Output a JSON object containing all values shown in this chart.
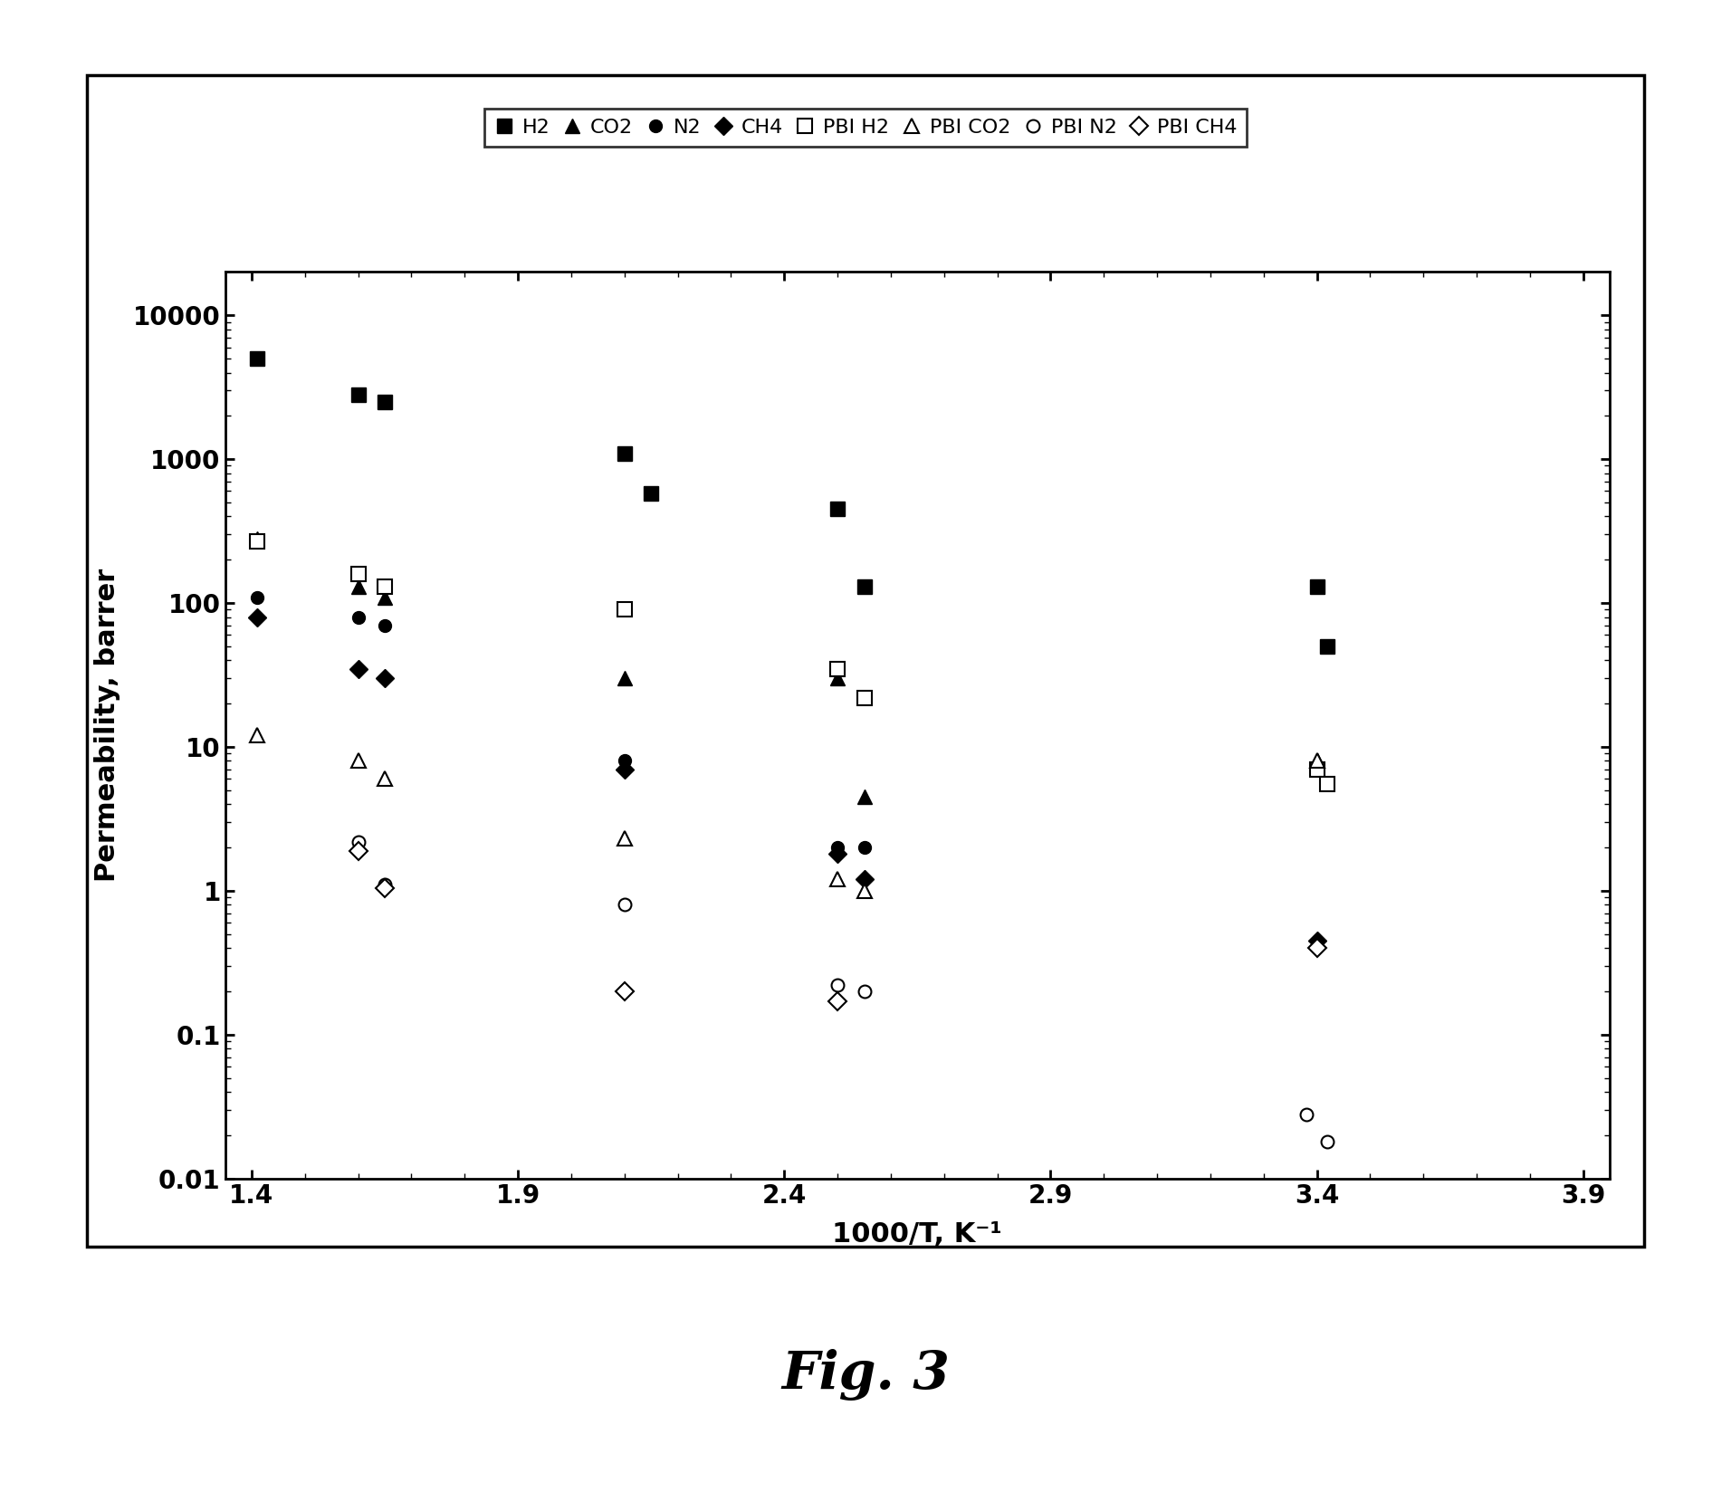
{
  "series": {
    "H2": {
      "x": [
        1.41,
        1.6,
        1.65,
        2.1,
        2.15,
        2.5,
        2.55,
        3.4,
        3.42
      ],
      "y": [
        5000,
        2800,
        2500,
        1100,
        580,
        450,
        130,
        130,
        50
      ],
      "marker": "s",
      "filled": true,
      "markersize": 11,
      "label": "H2"
    },
    "CO2": {
      "x": [
        1.41,
        1.6,
        1.65,
        2.1,
        2.5,
        2.55,
        3.4
      ],
      "y": [
        280,
        130,
        110,
        30,
        30,
        4.5,
        8
      ],
      "marker": "^",
      "filled": true,
      "markersize": 12,
      "label": "CO2"
    },
    "N2": {
      "x": [
        1.41,
        1.6,
        1.65,
        2.1,
        2.5,
        2.55
      ],
      "y": [
        110,
        80,
        70,
        8,
        2.0,
        2.0
      ],
      "marker": "o",
      "filled": true,
      "markersize": 10,
      "label": "N2"
    },
    "CH4": {
      "x": [
        1.41,
        1.6,
        1.65,
        2.1,
        2.5,
        2.55,
        3.4
      ],
      "y": [
        80,
        35,
        30,
        7,
        1.8,
        1.2,
        0.45
      ],
      "marker": "D",
      "filled": true,
      "markersize": 10,
      "label": "CH4"
    },
    "PBI H2": {
      "x": [
        1.41,
        1.6,
        1.65,
        2.1,
        2.5,
        2.55,
        3.4,
        3.42
      ],
      "y": [
        270,
        160,
        130,
        90,
        35,
        22,
        7,
        5.5
      ],
      "marker": "s",
      "filled": false,
      "markersize": 11,
      "label": "PBI H2"
    },
    "PBI CO2": {
      "x": [
        1.41,
        1.6,
        1.65,
        2.1,
        2.5,
        2.55,
        3.4
      ],
      "y": [
        12,
        8,
        6,
        2.3,
        1.2,
        1.0,
        8
      ],
      "marker": "^",
      "filled": false,
      "markersize": 12,
      "label": "PBI CO2"
    },
    "PBI N2": {
      "x": [
        1.6,
        1.65,
        2.1,
        2.5,
        2.55,
        3.38,
        3.42
      ],
      "y": [
        2.2,
        1.1,
        0.8,
        0.22,
        0.2,
        0.028,
        0.018
      ],
      "marker": "o",
      "filled": false,
      "markersize": 10,
      "label": "PBI N2"
    },
    "PBI CH4": {
      "x": [
        1.6,
        1.65,
        2.1,
        2.5,
        3.4
      ],
      "y": [
        1.9,
        1.05,
        0.2,
        0.17,
        0.4
      ],
      "marker": "D",
      "filled": false,
      "markersize": 10,
      "label": "PBI CH4"
    }
  },
  "xlim": [
    1.35,
    3.95
  ],
  "ylim": [
    0.01,
    20000
  ],
  "xticks": [
    1.4,
    1.9,
    2.4,
    2.9,
    3.4,
    3.9
  ],
  "yticks": [
    0.01,
    0.1,
    1,
    10,
    100,
    1000,
    10000
  ],
  "ytick_labels": [
    "0.01",
    "0.1",
    "1",
    "10",
    "100",
    "1000",
    "10000"
  ],
  "xlabel": "1000/T, K⁻¹",
  "ylabel": "Permeability, barrer",
  "fig_caption": "Fig. 3"
}
